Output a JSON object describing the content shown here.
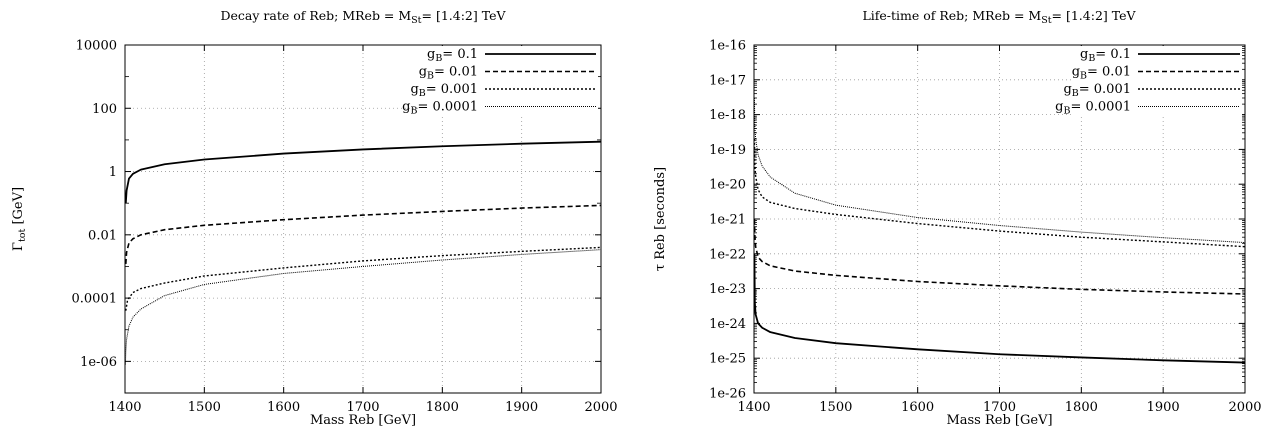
{
  "chart_data": [
    {
      "type": "line",
      "title": {
        "main": "Decay rate of Reb; MReb = M",
        "sub": "St",
        "tail": "= [1.4:2] TeV"
      },
      "xlabel": "Mass Reb [GeV]",
      "ylabel": {
        "main": "Γ",
        "sub": "tot",
        "tail": " [GeV]"
      },
      "xlim": [
        1400,
        2000
      ],
      "ylim": [
        1e-07,
        10000
      ],
      "yscale": "log",
      "grid": true,
      "legend_position": "top-right",
      "x_ticks": [
        1400,
        1500,
        1600,
        1700,
        1800,
        1900,
        2000
      ],
      "x_tick_labels": [
        "1400",
        "1500",
        "1600",
        "1700",
        "1800",
        "1900",
        "2000"
      ],
      "y_ticks": [
        1e-06,
        0.0001,
        0.01,
        1,
        100,
        10000
      ],
      "y_tick_labels": [
        "1e-06",
        "0.0001",
        "0.01",
        "1",
        "100",
        "10000"
      ],
      "series": [
        {
          "name": {
            "main": "g",
            "sub": "B",
            "tail": "= 0.1"
          },
          "style": "solid",
          "x": [
            1401,
            1402,
            1405,
            1410,
            1420,
            1450,
            1500,
            1600,
            1700,
            1800,
            1900,
            2000
          ],
          "y": [
            0.1,
            0.25,
            0.6,
            0.85,
            1.15,
            1.7,
            2.4,
            3.7,
            5.0,
            6.3,
            7.6,
            8.8
          ]
        },
        {
          "name": {
            "main": "g",
            "sub": "B",
            "tail": "= 0.01"
          },
          "style": "dashed",
          "x": [
            1401,
            1402,
            1405,
            1410,
            1420,
            1450,
            1500,
            1600,
            1700,
            1800,
            1900,
            2000
          ],
          "y": [
            0.0012,
            0.0028,
            0.0055,
            0.0075,
            0.01,
            0.0145,
            0.02,
            0.03,
            0.042,
            0.055,
            0.07,
            0.085
          ]
        },
        {
          "name": {
            "main": "g",
            "sub": "B",
            "tail": "= 0.001"
          },
          "style": "dotted",
          "x": [
            1401,
            1403,
            1405,
            1410,
            1420,
            1450,
            1500,
            1600,
            1700,
            1800,
            1900,
            2000
          ],
          "y": [
            4e-05,
            8e-05,
            0.0001,
            0.00015,
            0.0002,
            0.0003,
            0.0005,
            0.0009,
            0.0015,
            0.0022,
            0.003,
            0.004
          ]
        },
        {
          "name": {
            "main": "g",
            "sub": "B",
            "tail": "= 0.0001"
          },
          "style": "fine",
          "x": [
            1400.5,
            1401,
            1402,
            1405,
            1410,
            1420,
            1450,
            1500,
            1600,
            1700,
            1800,
            1900,
            2000
          ],
          "y": [
            8e-07,
            2e-06,
            5e-06,
            1.3e-05,
            2.5e-05,
            4.5e-05,
            0.00012,
            0.00027,
            0.0006,
            0.001,
            0.0016,
            0.0024,
            0.0034
          ]
        }
      ]
    },
    {
      "type": "line",
      "title": {
        "main": "Life-time of Reb; MReb = M",
        "sub": "St",
        "tail": "= [1.4:2] TeV"
      },
      "xlabel": "Mass Reb [GeV]",
      "ylabel": {
        "main": "τ Reb [seconds]",
        "sub": "",
        "tail": ""
      },
      "xlim": [
        1400,
        2000
      ],
      "ylim": [
        1e-26,
        1e-16
      ],
      "yscale": "log",
      "grid": true,
      "legend_position": "top-right",
      "x_ticks": [
        1400,
        1500,
        1600,
        1700,
        1800,
        1900,
        2000
      ],
      "x_tick_labels": [
        "1400",
        "1500",
        "1600",
        "1700",
        "1800",
        "1900",
        "2000"
      ],
      "y_ticks": [
        1e-26,
        1e-25,
        1e-24,
        1e-23,
        1e-22,
        1e-21,
        1e-20,
        1e-19,
        1e-18,
        1e-17,
        1e-16
      ],
      "y_tick_labels": [
        "1e-26",
        "1e-25",
        "1e-24",
        "1e-23",
        "1e-22",
        "1e-21",
        "1e-20",
        "1e-19",
        "1e-18",
        "1e-17",
        "1e-16"
      ],
      "series": [
        {
          "name": {
            "main": "g",
            "sub": "B",
            "tail": "= 0.1"
          },
          "style": "solid",
          "x": [
            1400.5,
            1401,
            1402,
            1405,
            1410,
            1420,
            1450,
            1500,
            1600,
            1700,
            1800,
            1900,
            2000
          ],
          "y": [
            1e-22,
            4e-24,
            1.8e-24,
            1e-24,
            7.5e-25,
            5.6e-25,
            3.8e-25,
            2.7e-25,
            1.8e-25,
            1.3e-25,
            1.05e-25,
            8.7e-26,
            7.5e-26
          ]
        },
        {
          "name": {
            "main": "g",
            "sub": "B",
            "tail": "= 0.01"
          },
          "style": "dashed",
          "x": [
            1400.5,
            1401,
            1402,
            1405,
            1410,
            1420,
            1450,
            1500,
            1600,
            1700,
            1800,
            1900,
            2000
          ],
          "y": [
            1e-21,
            3.5e-22,
            1.6e-22,
            8e-23,
            6e-23,
            4.5e-23,
            3.2e-23,
            2.4e-23,
            1.6e-23,
            1.2e-23,
            9.5e-24,
            8e-24,
            7e-24
          ]
        },
        {
          "name": {
            "main": "g",
            "sub": "B",
            "tail": "= 0.001"
          },
          "style": "dotted",
          "x": [
            1400.5,
            1401,
            1402,
            1405,
            1410,
            1420,
            1450,
            1500,
            1600,
            1700,
            1800,
            1900,
            2000
          ],
          "y": [
            2e-19,
            4e-20,
            1.7e-20,
            7e-21,
            4.3e-21,
            3e-21,
            2e-21,
            1.35e-21,
            7.4e-22,
            4.5e-22,
            3e-22,
            2.2e-22,
            1.6e-22
          ]
        },
        {
          "name": {
            "main": "g",
            "sub": "B",
            "tail": "= 0.0001"
          },
          "style": "fine",
          "x": [
            1400.5,
            1401,
            1402,
            1405,
            1410,
            1420,
            1450,
            1500,
            1600,
            1700,
            1800,
            1900,
            2000
          ],
          "y": [
            3e-18,
            5e-19,
            2e-19,
            7e-20,
            3.3e-20,
            1.6e-20,
            5.5e-21,
            2.5e-21,
            1.1e-21,
            6.5e-22,
            4.2e-22,
            2.9e-22,
            2.1e-22
          ]
        }
      ]
    }
  ]
}
